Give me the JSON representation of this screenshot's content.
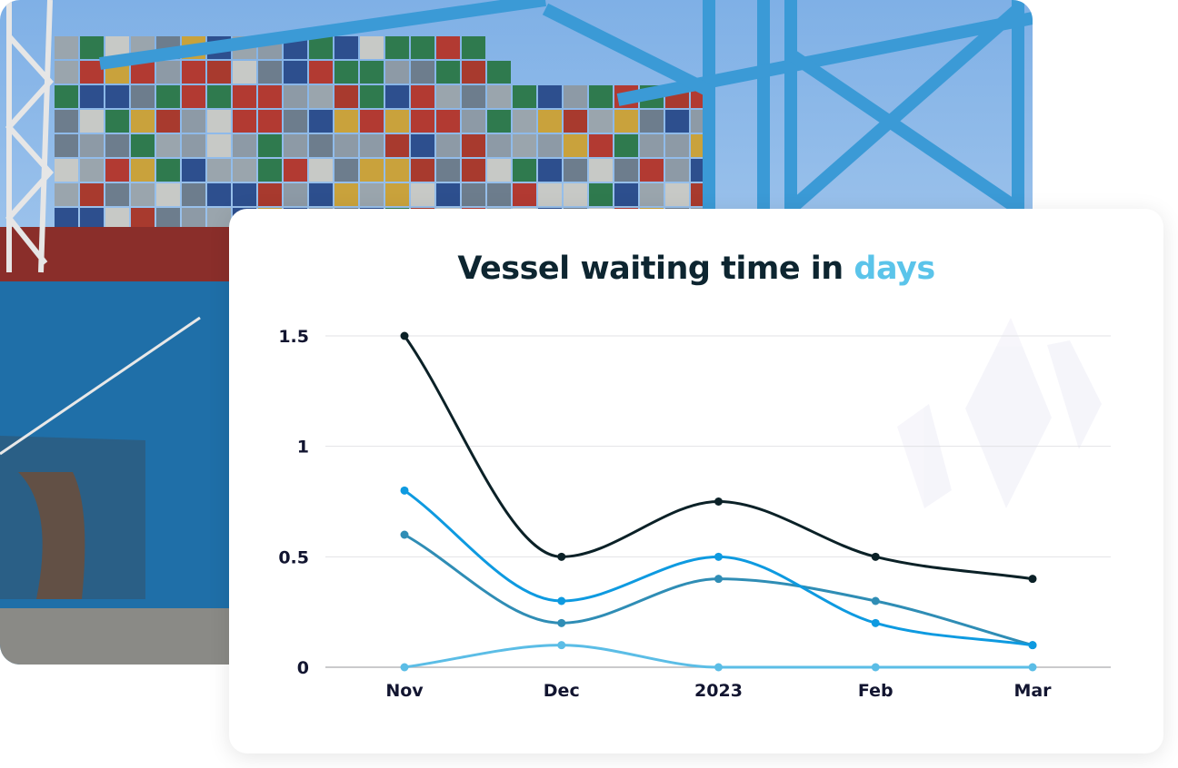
{
  "chart_data": {
    "type": "line",
    "title": "Vessel waiting time in",
    "title_accent": "days",
    "categories": [
      "Nov",
      "Dec",
      "2023",
      "Feb",
      "Mar"
    ],
    "yticks": [
      "0",
      "0.5",
      "1",
      "1.5"
    ],
    "ylim": [
      0,
      1.5
    ],
    "grid": true,
    "smooth": true,
    "series": [
      {
        "color": "#0b2127",
        "values": [
          1.5,
          0.5,
          0.75,
          0.5,
          0.4
        ]
      },
      {
        "color": "#0e9ae0",
        "values": [
          0.8,
          0.3,
          0.5,
          0.2,
          0.1
        ]
      },
      {
        "color": "#2f8db5",
        "values": [
          0.6,
          0.2,
          0.4,
          0.3,
          0.1
        ]
      },
      {
        "color": "#5bbde6",
        "values": [
          0,
          0.1,
          0,
          0,
          0
        ]
      }
    ]
  },
  "colors": {
    "title": "#0d2530",
    "accent": "#5bc4ea"
  }
}
